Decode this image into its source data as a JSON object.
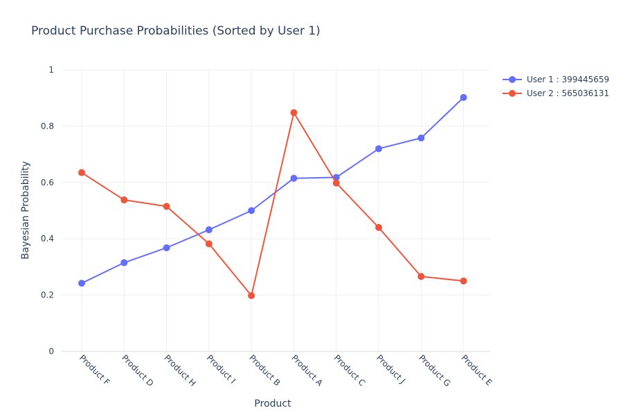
{
  "chart_data": {
    "type": "line",
    "title": "Product Purchase Probabilities (Sorted by User 1)",
    "xlabel": "Product",
    "ylabel": "Bayesian Probability",
    "ylim": [
      0,
      1
    ],
    "yticks": [
      0,
      0.2,
      0.4,
      0.6,
      0.8,
      1
    ],
    "ytick_labels": [
      "0",
      "0.2",
      "0.4",
      "0.6",
      "0.8",
      "1"
    ],
    "grid": true,
    "legend_position": "top-right",
    "categories": [
      "Product F",
      "Product D",
      "Product H",
      "Product I",
      "Product B",
      "Product A",
      "Product C",
      "Product J",
      "Product G",
      "Product E"
    ],
    "series": [
      {
        "name": "User 1 : 399445659",
        "color": "#636efa",
        "values": [
          0.242,
          0.315,
          0.368,
          0.432,
          0.5,
          0.615,
          0.618,
          0.72,
          0.758,
          0.902
        ]
      },
      {
        "name": "User 2 : 565036131",
        "color": "#ef553b",
        "values": [
          0.635,
          0.538,
          0.515,
          0.382,
          0.198,
          0.848,
          0.598,
          0.44,
          0.266,
          0.25
        ]
      }
    ]
  }
}
